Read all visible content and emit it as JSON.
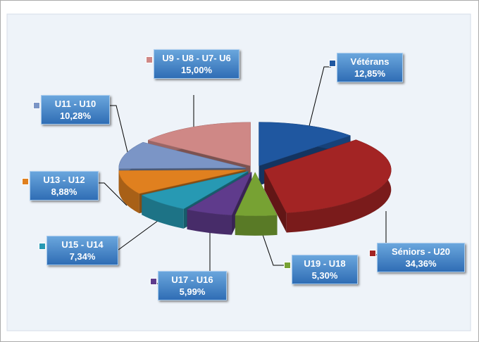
{
  "chart_data": {
    "type": "pie",
    "categories": [
      "Vétérans",
      "Séniors - U20",
      "U19 - U18",
      "U17 - U16",
      "U15 - U14",
      "U13 - U12",
      "U11 - U10",
      "U9 - U8 - U7- U6"
    ],
    "values": [
      12.85,
      34.36,
      5.3,
      5.99,
      7.34,
      8.88,
      10.28,
      15.0
    ],
    "value_labels": [
      "12,85%",
      "34,36%",
      "5,30%",
      "5,99%",
      "7,34%",
      "8,88%",
      "10,28%",
      "15,00%"
    ],
    "colors": [
      "#1f57a0",
      "#a32424",
      "#77a233",
      "#5f3b8c",
      "#2799b3",
      "#e0801f",
      "#7b95c6",
      "#cf8886"
    ]
  }
}
